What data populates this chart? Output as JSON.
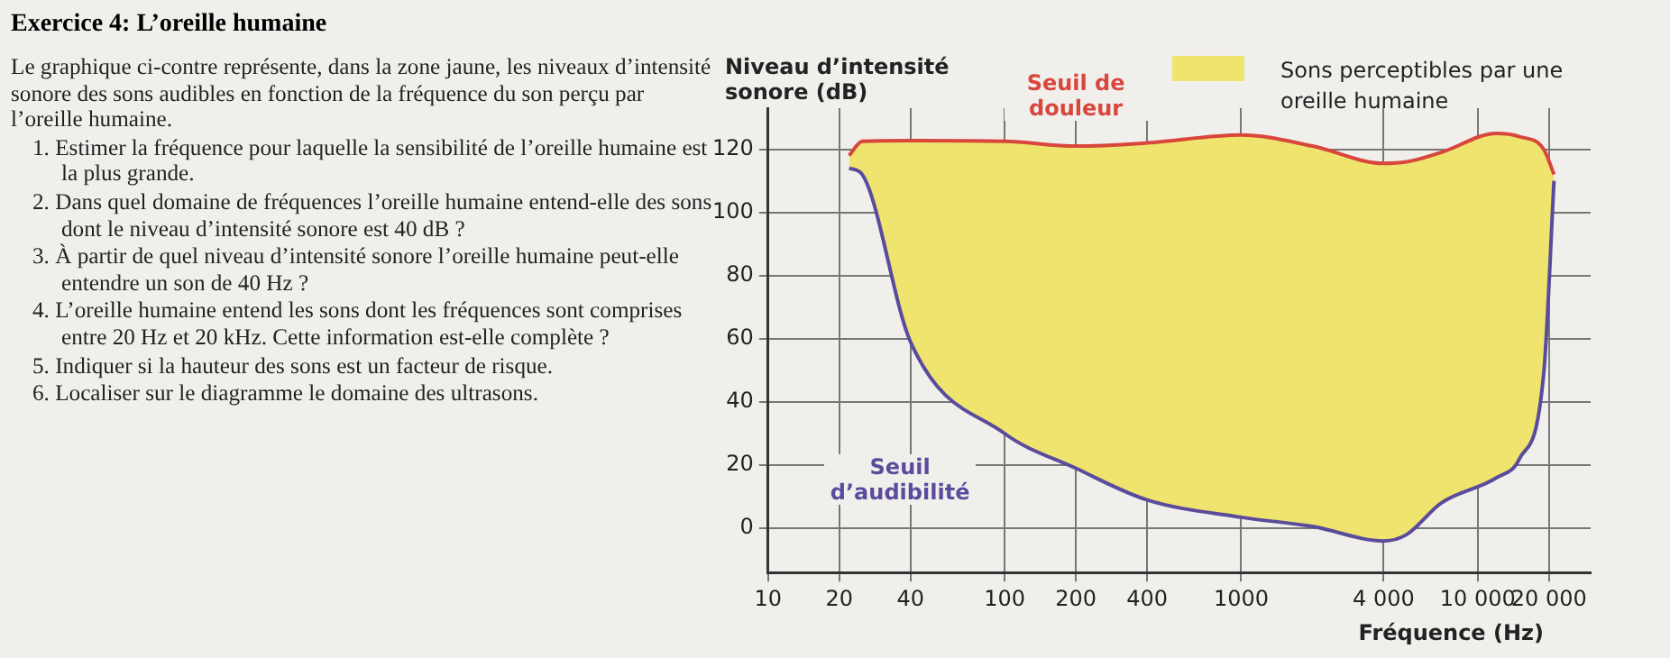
{
  "chart_data": {
    "type": "line",
    "title": "Exercice 4: L’oreille humaine",
    "ylabel": "Niveau d’intensité sonore (dB)",
    "xlabel": "Fréquence (Hz)",
    "x": [
      22,
      25,
      40,
      100,
      200,
      400,
      1000,
      2000,
      4000,
      5000,
      7000,
      12000,
      15000,
      19000,
      21000
    ],
    "series": [
      {
        "name": "Seuil de douleur",
        "color": "#d8463c",
        "values": [
          118,
          122.5,
          122.7,
          122.5,
          121,
          122,
          124.5,
          121,
          115.5,
          116,
          119,
          125,
          124,
          120,
          112
        ],
        "lower": [
          114,
          112,
          59,
          30,
          19,
          9,
          3.5,
          0.6,
          -4,
          -2,
          8,
          16,
          22,
          49,
          110
        ],
        "upper": [
          118,
          122.5,
          122.7,
          122.5,
          121,
          122,
          124.5,
          121,
          115.5,
          116,
          119,
          125,
          124,
          120,
          112
        ]
      },
      {
        "name": "Seuil d’audibilité",
        "color": "#5b4b9c",
        "values": [
          114,
          112,
          59,
          30,
          19,
          9,
          3.5,
          0.6,
          -4,
          -2,
          8,
          16,
          22,
          49,
          110
        ]
      }
    ],
    "log": "x",
    "xlim": [
      10,
      30000
    ],
    "xticks": [
      10,
      20,
      40,
      100,
      200,
      400,
      1000,
      {
        "value": 4000,
        "label": "4 000"
      },
      {
        "value": 10000,
        "label": "10 000"
      },
      {
        "value": 20000,
        "label": "20 000"
      }
    ],
    "ylim": [
      -14,
      133
    ],
    "yticks": [
      0,
      20,
      40,
      60,
      80,
      100,
      120
    ],
    "grid": true,
    "annotations": [
      "Sons perceptibles par une oreille humaine",
      "Le graphique ci-contre représente, dans la zone jaune, les niveaux d’intensité sonore des sons audibles en fonction de la fréquence du son perçu par l’oreille humaine.",
      "1. Estimer la fréquence pour laquelle la sensibilité de l’oreille humaine est la plus grande.",
      "2. Dans quel domaine de fréquences l’oreille humaine entend-elle des sons dont le niveau d’intensité sonore est 40 dB ?",
      "3. À partir de quel niveau d’intensité sonore l’oreille humaine peut-elle entendre un son de 40 Hz ?",
      "4. L’oreille humaine entend les sons dont les fréquences sont comprises entre 20 Hz et 20 kHz. Cette information est-elle complète ?",
      "5. Indiquer si la hauteur des sons est un facteur de risque.",
      "6. Localiser sur le diagramme le domaine des ultrasons."
    ]
  }
}
